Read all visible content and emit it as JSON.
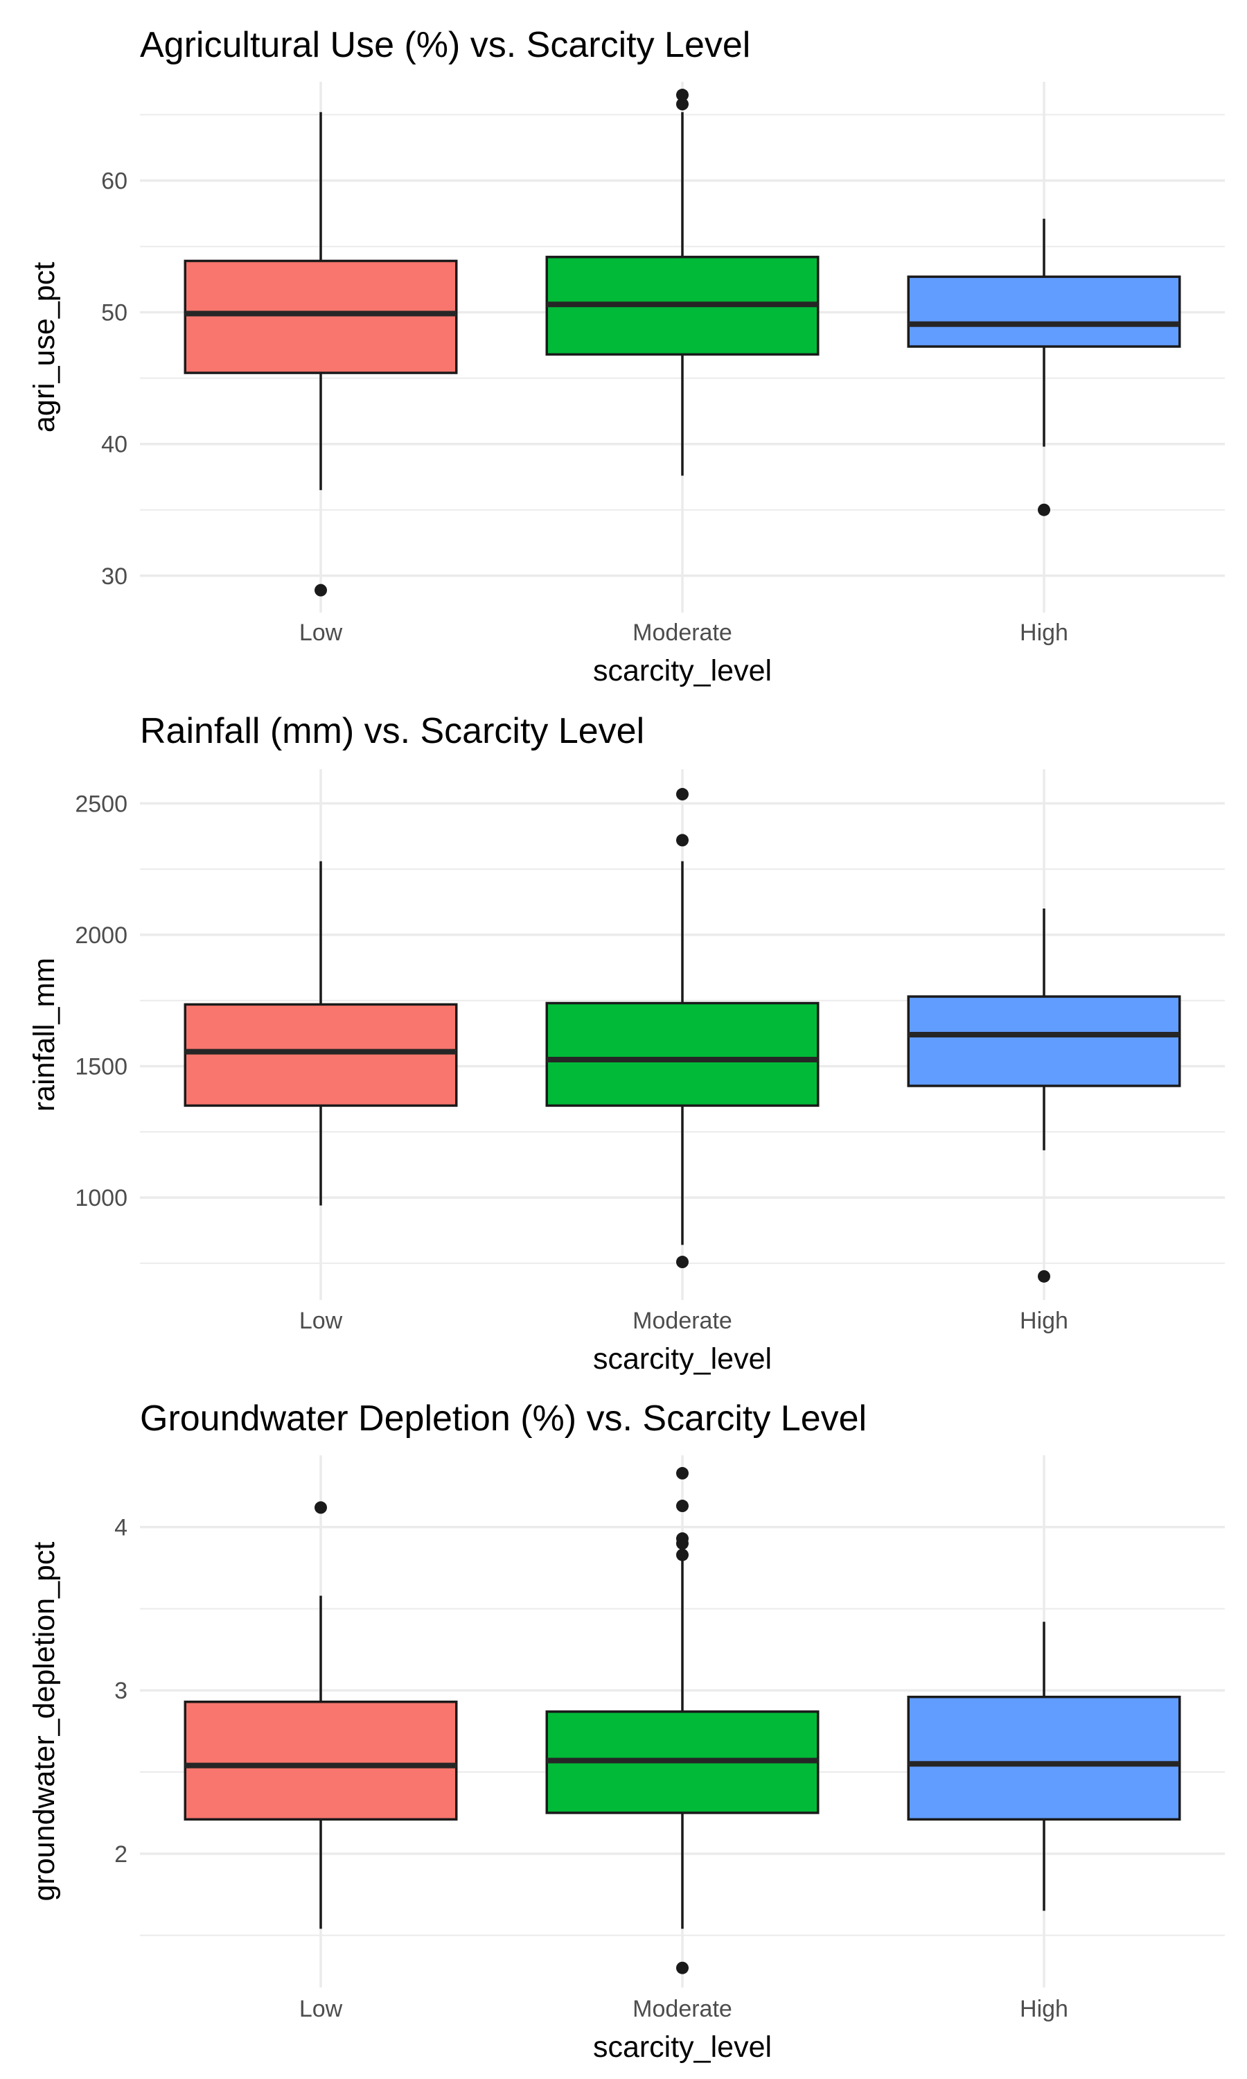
{
  "chart_data": [
    {
      "type": "boxplot",
      "title": "Agricultural Use (%) vs. Scarcity Level",
      "xlabel": "scarcity_level",
      "ylabel": "agri_use_pct",
      "categories": [
        "Low",
        "Moderate",
        "High"
      ],
      "colors": [
        "#F8766D",
        "#00BA38",
        "#619CFF"
      ],
      "ylim": [
        27.2,
        67.5
      ],
      "yticks": [
        30,
        40,
        50,
        60
      ],
      "yminor": [
        35,
        45,
        55,
        65
      ],
      "boxes": [
        {
          "category": "Low",
          "whisker_low": 36.5,
          "q1": 45.4,
          "median": 49.9,
          "q3": 53.9,
          "whisker_high": 65.2,
          "outliers": [
            28.9
          ]
        },
        {
          "category": "Moderate",
          "whisker_low": 37.6,
          "q1": 46.8,
          "median": 50.6,
          "q3": 54.2,
          "whisker_high": 65.2,
          "outliers": [
            65.8,
            66.5
          ]
        },
        {
          "category": "High",
          "whisker_low": 39.8,
          "q1": 47.4,
          "median": 49.1,
          "q3": 52.7,
          "whisker_high": 57.1,
          "outliers": [
            35.0
          ]
        }
      ]
    },
    {
      "type": "boxplot",
      "title": "Rainfall (mm) vs. Scarcity Level",
      "xlabel": "scarcity_level",
      "ylabel": "rainfall_mm",
      "categories": [
        "Low",
        "Moderate",
        "High"
      ],
      "colors": [
        "#F8766D",
        "#00BA38",
        "#619CFF"
      ],
      "ylim": [
        610,
        2630
      ],
      "yticks": [
        1000,
        1500,
        2000,
        2500
      ],
      "yminor": [
        750,
        1250,
        1750,
        2250
      ],
      "boxes": [
        {
          "category": "Low",
          "whisker_low": 970,
          "q1": 1350,
          "median": 1555,
          "q3": 1735,
          "whisker_high": 2280,
          "outliers": []
        },
        {
          "category": "Moderate",
          "whisker_low": 820,
          "q1": 1350,
          "median": 1525,
          "q3": 1740,
          "whisker_high": 2280,
          "outliers": [
            755,
            2360,
            2535
          ]
        },
        {
          "category": "High",
          "whisker_low": 1180,
          "q1": 1425,
          "median": 1620,
          "q3": 1765,
          "whisker_high": 2100,
          "outliers": [
            700
          ]
        }
      ]
    },
    {
      "type": "boxplot",
      "title": "Groundwater Depletion (%) vs. Scarcity Level",
      "xlabel": "scarcity_level",
      "ylabel": "groundwater_depletion_pct",
      "categories": [
        "Low",
        "Moderate",
        "High"
      ],
      "colors": [
        "#F8766D",
        "#00BA38",
        "#619CFF"
      ],
      "ylim": [
        1.18,
        4.44
      ],
      "yticks": [
        2,
        3,
        4
      ],
      "yminor": [
        1.5,
        2.5,
        3.5
      ],
      "boxes": [
        {
          "category": "Low",
          "whisker_low": 1.54,
          "q1": 2.21,
          "median": 2.54,
          "q3": 2.93,
          "whisker_high": 3.58,
          "outliers": [
            4.12
          ]
        },
        {
          "category": "Moderate",
          "whisker_low": 1.54,
          "q1": 2.25,
          "median": 2.57,
          "q3": 2.87,
          "whisker_high": 3.8,
          "outliers": [
            1.3,
            3.83,
            3.9,
            3.93,
            4.13,
            4.33
          ]
        },
        {
          "category": "High",
          "whisker_low": 1.65,
          "q1": 2.21,
          "median": 2.55,
          "q3": 2.96,
          "whisker_high": 3.42,
          "outliers": []
        }
      ]
    }
  ]
}
